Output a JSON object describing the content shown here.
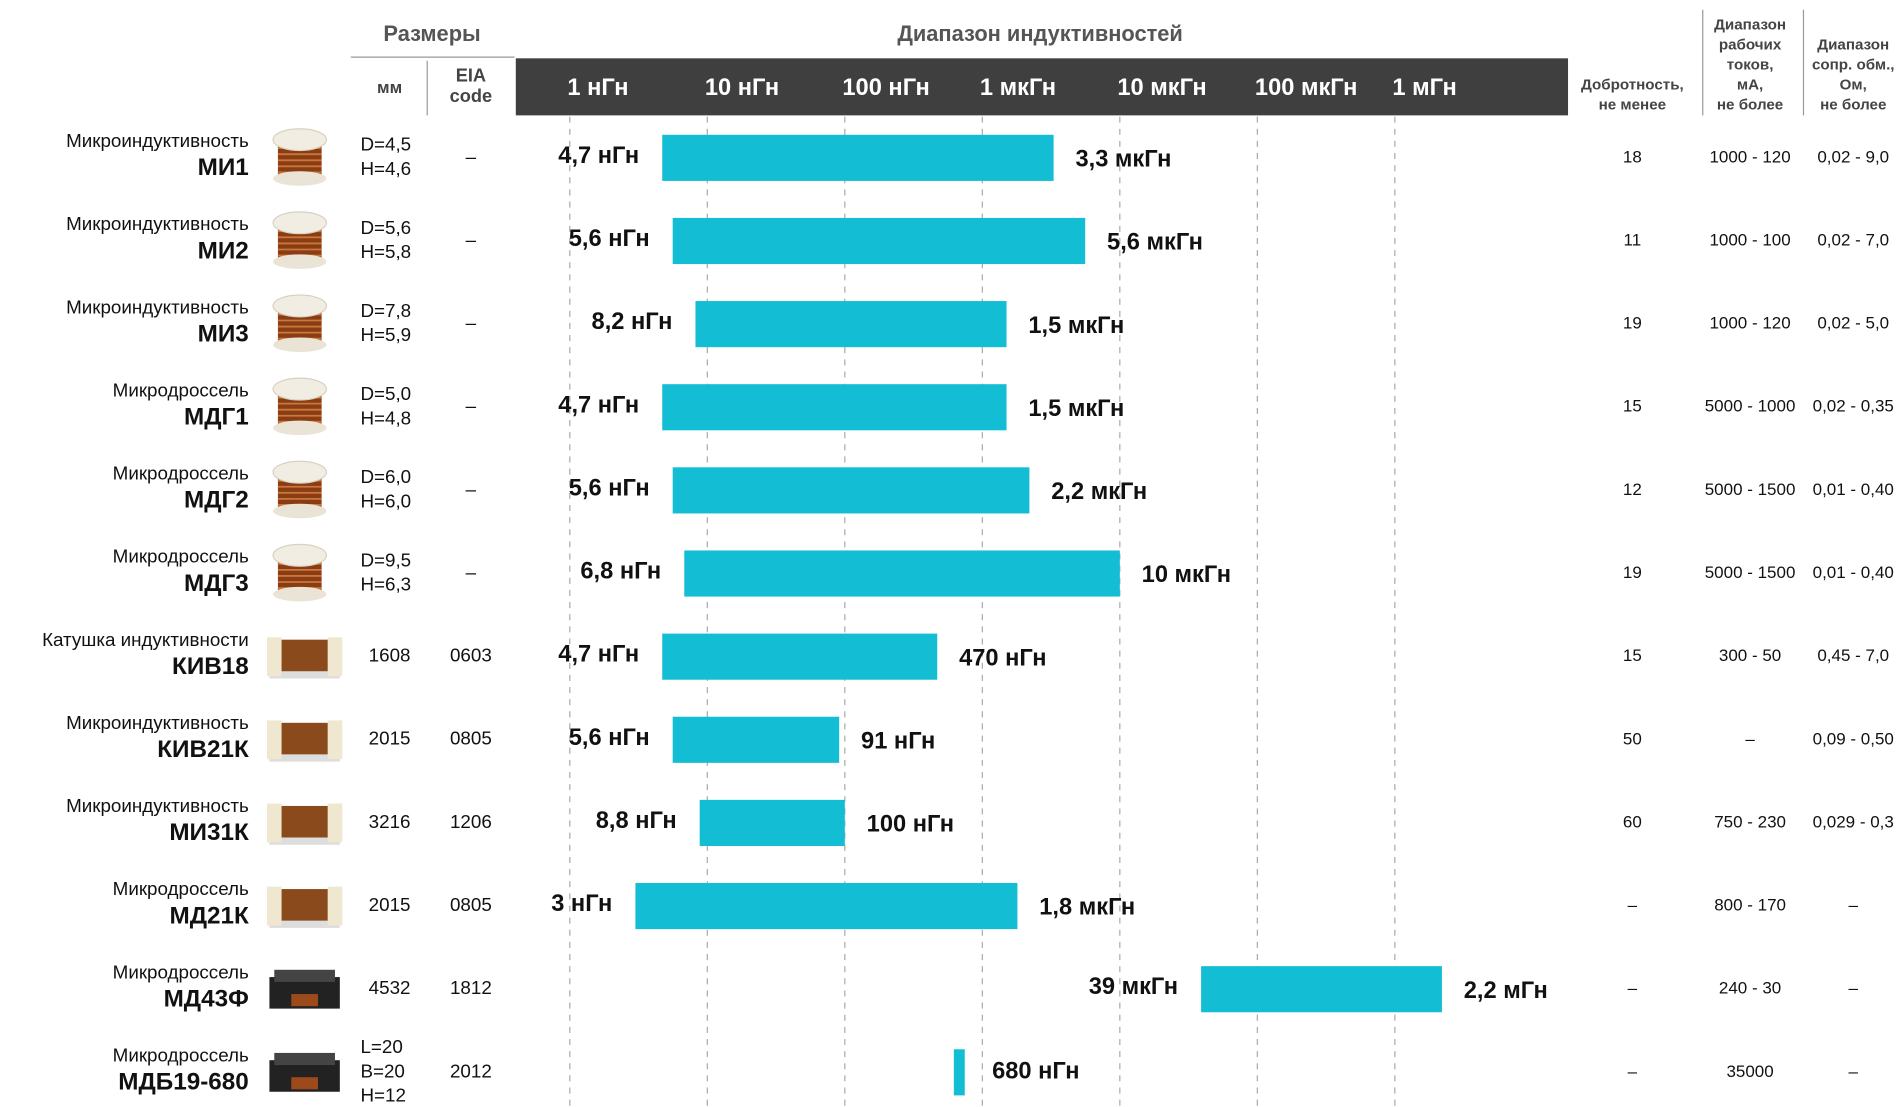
{
  "header": {
    "sizes": "Размеры",
    "range": "Диапазон индуктивностей",
    "mm": "мм",
    "eia": [
      "EIA",
      "code"
    ],
    "q": [
      "Добротность,",
      "не менее"
    ],
    "current": [
      "Диапазон",
      "рабочих",
      "токов,",
      "мА,",
      "не более"
    ],
    "resistance": [
      "Диапазон",
      "сопр. обм.,",
      "Ом,",
      "не более"
    ]
  },
  "axis": {
    "scale": "log",
    "ticks": [
      {
        "value": 1,
        "label": "1 нГн"
      },
      {
        "value": 10,
        "label": "10 нГн"
      },
      {
        "value": 100,
        "label": "100 нГн"
      },
      {
        "value": 1000,
        "label": "1 мкГн"
      },
      {
        "value": 10000,
        "label": "10 мкГн"
      },
      {
        "value": 100000,
        "label": "100 мкГн"
      },
      {
        "value": 1000000,
        "label": "1 мГн"
      }
    ],
    "bar_color": "#13bdd3",
    "grid": true
  },
  "rows": [
    {
      "kind": "Микроиндуктивность",
      "model": "МИ1",
      "size": [
        "D=4,5",
        "H=4,6"
      ],
      "eia": "–",
      "min": 4.7,
      "min_label": "4,7 нГн",
      "max": 3300,
      "max_label": "3,3 мкГн",
      "q": 18,
      "current": "1000 - 120",
      "resistance": "0,02 - 9,0"
    },
    {
      "kind": "Микроиндуктивность",
      "model": "МИ2",
      "size": [
        "D=5,6",
        "H=5,8"
      ],
      "eia": "–",
      "min": 5.6,
      "min_label": "5,6 нГн",
      "max": 5600,
      "max_label": "5,6 мкГн",
      "q": 11,
      "current": "1000 - 100",
      "resistance": "0,02 - 7,0"
    },
    {
      "kind": "Микроиндуктивность",
      "model": "МИ3",
      "size": [
        "D=7,8",
        "H=5,9"
      ],
      "eia": "–",
      "min": 8.2,
      "min_label": "8,2 нГн",
      "max": 1500,
      "max_label": "1,5 мкГн",
      "q": 19,
      "current": "1000 - 120",
      "resistance": "0,02 - 5,0"
    },
    {
      "kind": "Микродроссель",
      "model": "МДГ1",
      "size": [
        "D=5,0",
        "H=4,8"
      ],
      "eia": "–",
      "min": 4.7,
      "min_label": "4,7 нГн",
      "max": 1500,
      "max_label": "1,5 мкГн",
      "q": 15,
      "current": "5000 - 1000",
      "resistance": "0,02 - 0,35"
    },
    {
      "kind": "Микродроссель",
      "model": "МДГ2",
      "size": [
        "D=6,0",
        "H=6,0"
      ],
      "eia": "–",
      "min": 5.6,
      "min_label": "5,6 нГн",
      "max": 2200,
      "max_label": "2,2 мкГн",
      "q": 12,
      "current": "5000 - 1500",
      "resistance": "0,01 - 0,40"
    },
    {
      "kind": "Микродроссель",
      "model": "МДГ3",
      "size": [
        "D=9,5",
        "H=6,3"
      ],
      "eia": "–",
      "min": 6.8,
      "min_label": "6,8 нГн",
      "max": 10000,
      "max_label": "10 мкГн",
      "q": 19,
      "current": "5000 - 1500",
      "resistance": "0,01 - 0,40"
    },
    {
      "kind": "Катушка индуктивности",
      "model": "КИВ18",
      "size": [
        "1608"
      ],
      "eia": "0603",
      "min": 4.7,
      "min_label": "4,7 нГн",
      "max": 470,
      "max_label": "470 нГн",
      "q": 15,
      "current": "300 - 50",
      "resistance": "0,45 - 7,0"
    },
    {
      "kind": "Микроиндуктивность",
      "model": "КИВ21К",
      "size": [
        "2015"
      ],
      "eia": "0805",
      "min": 5.6,
      "min_label": "5,6 нГн",
      "max": 91,
      "max_label": "91 нГн",
      "q": 50,
      "current": "–",
      "resistance": "0,09 - 0,50"
    },
    {
      "kind": "Микроиндуктивность",
      "model": "МИ31К",
      "size": [
        "3216"
      ],
      "eia": "1206",
      "min": 8.8,
      "min_label": "8,8 нГн",
      "max": 100,
      "max_label": "100 нГн",
      "q": 60,
      "current": "750 - 230",
      "resistance": "0,029 - 0,3"
    },
    {
      "kind": "Микродроссель",
      "model": "МД21К",
      "size": [
        "2015"
      ],
      "eia": "0805",
      "min": 3,
      "min_label": "3 нГн",
      "max": 1800,
      "max_label": "1,8 мкГн",
      "q": "–",
      "current": "800 - 170",
      "resistance": "–"
    },
    {
      "kind": "Микродроссель",
      "model": "МД43Ф",
      "size": [
        "4532"
      ],
      "eia": "1812",
      "min": 39000,
      "min_label": "39 мкГн",
      "max": 2200000,
      "max_label": "2,2 мГн",
      "q": "–",
      "current": "240 - 30",
      "resistance": "–"
    },
    {
      "kind": "Микродроссель",
      "model": "МДБ19-680",
      "size": [
        "L=20",
        "B=20",
        "H=12"
      ],
      "eia": "2012",
      "value": 680,
      "value_label": "680 нГн",
      "q": "–",
      "current": "35000",
      "resistance": "–"
    }
  ]
}
